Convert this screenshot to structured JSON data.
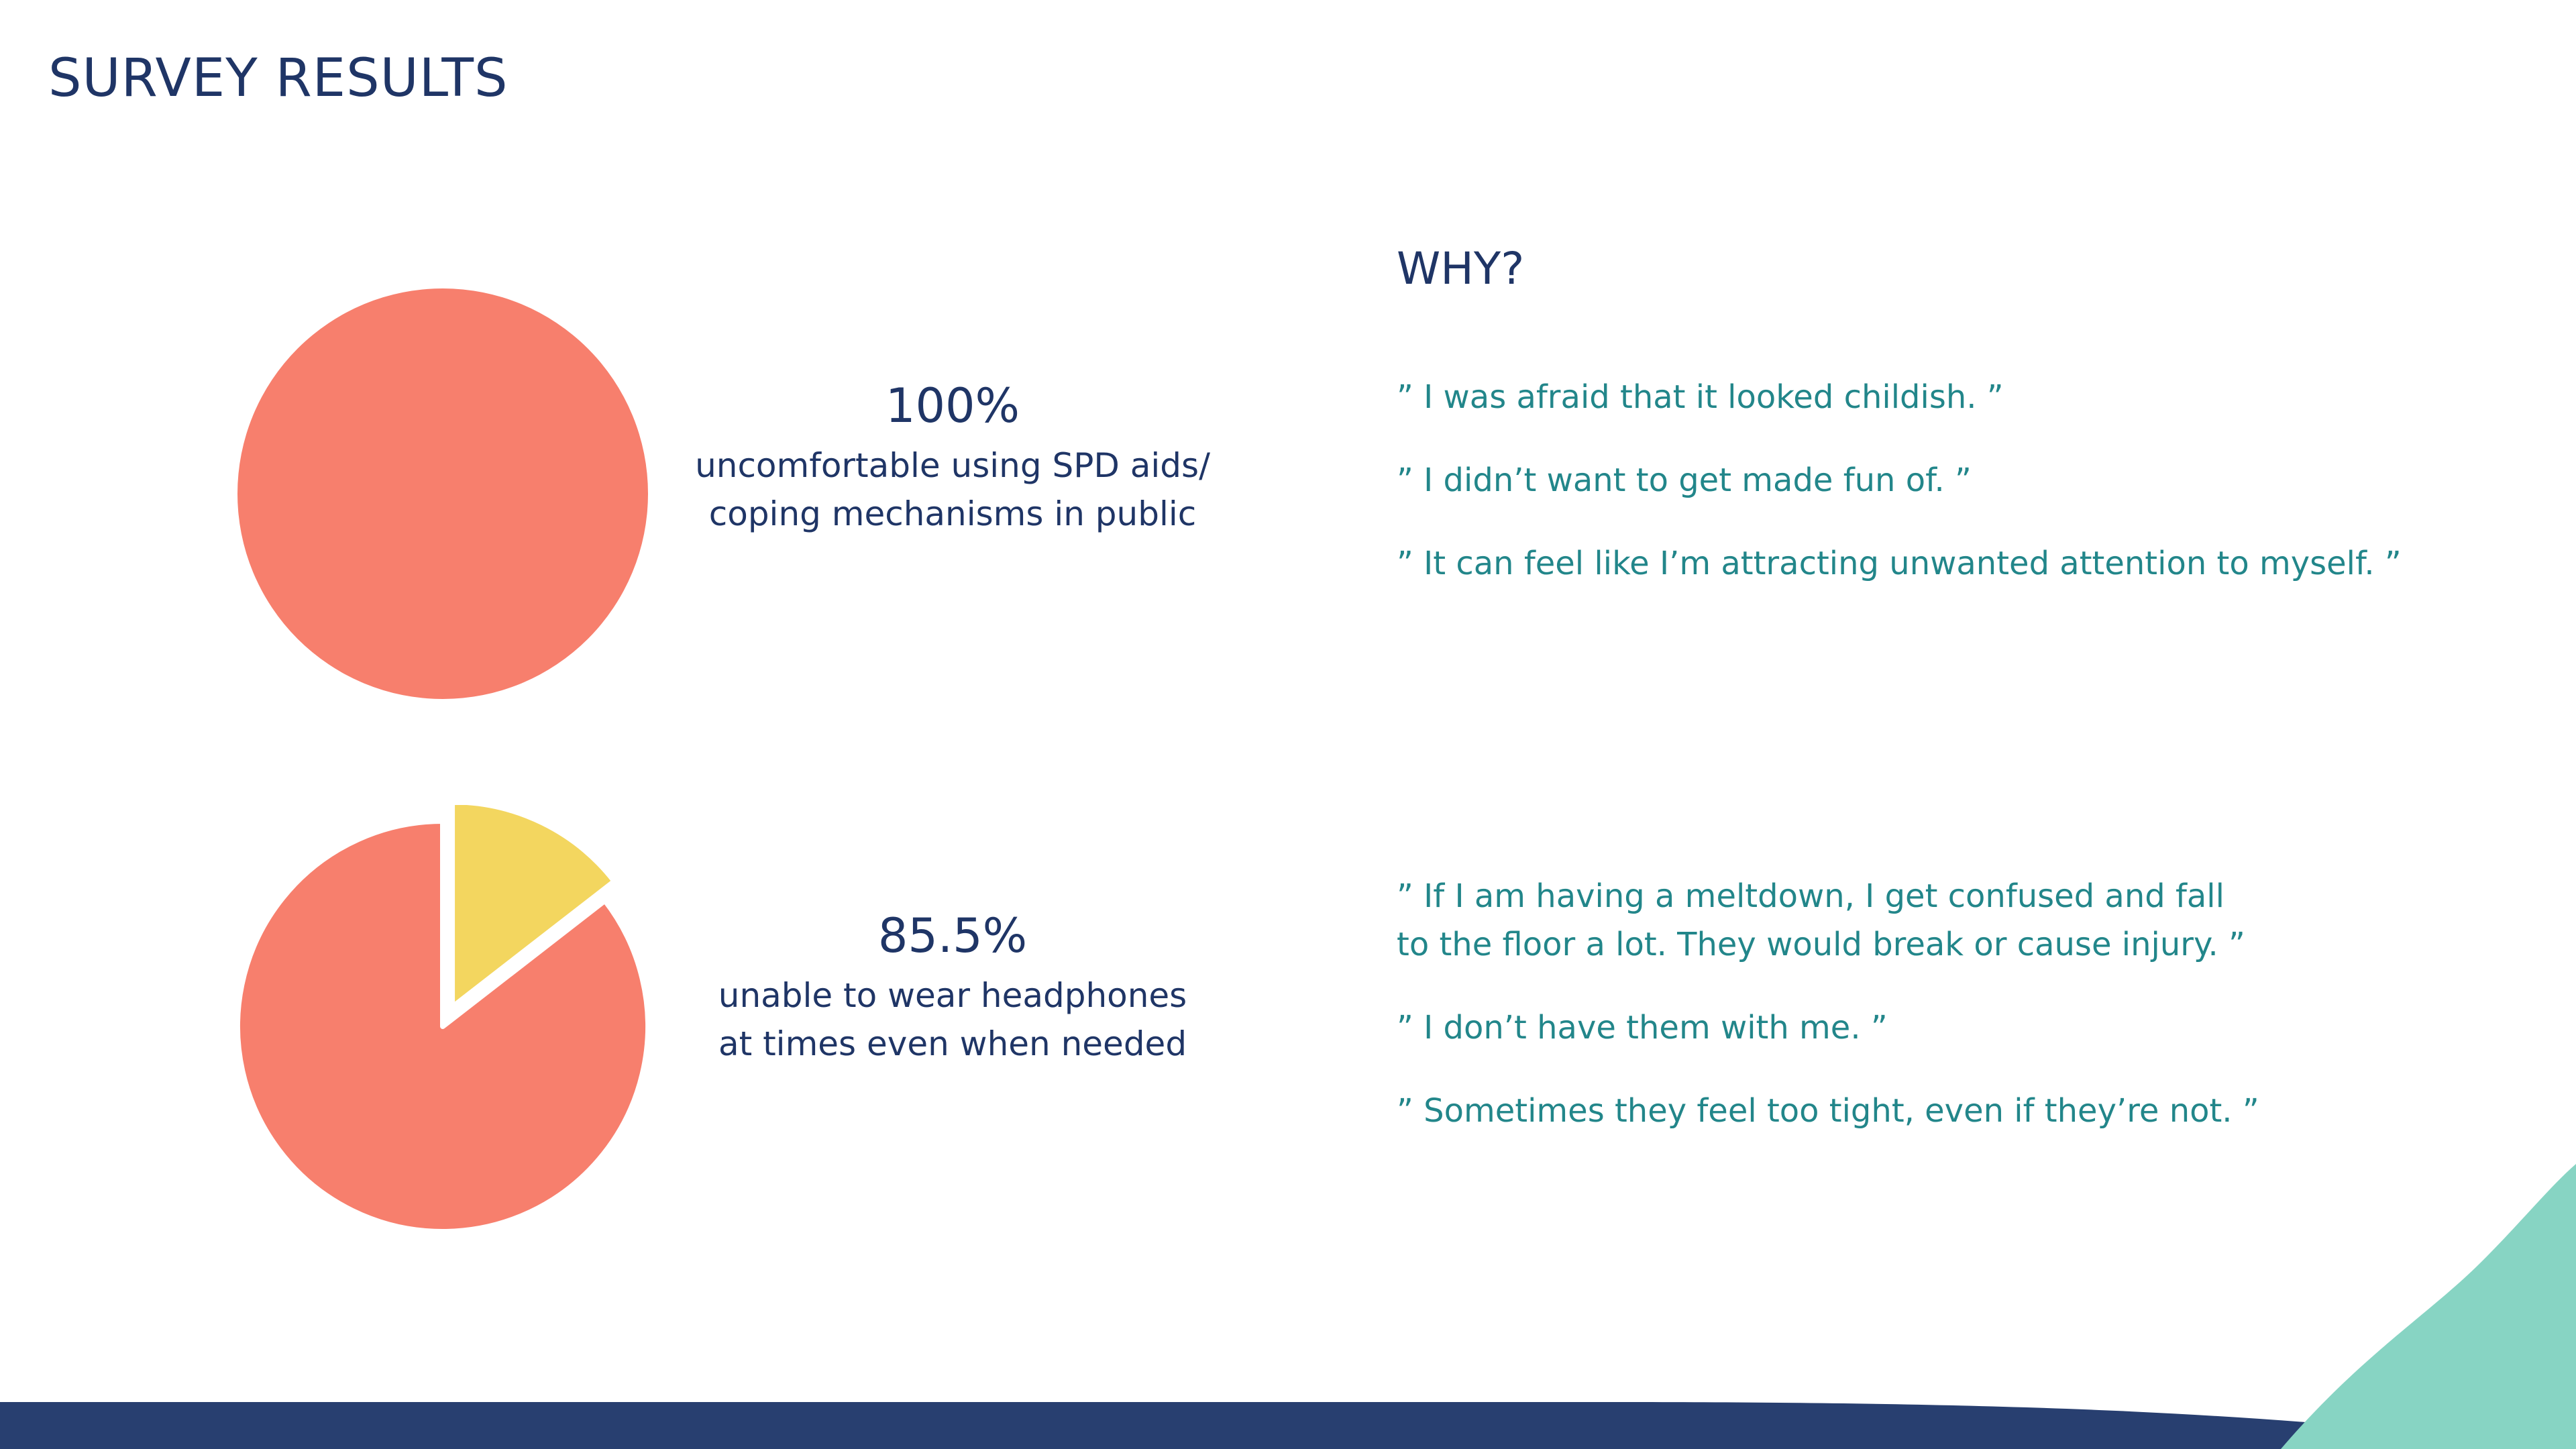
{
  "title": "SURVEY RESULTS",
  "why_heading": "WHY?",
  "colors": {
    "primary": "#f77f6d",
    "secondary": "#f3d65f",
    "navy": "#283f70",
    "teal": "#87d4c3",
    "quote_text": "#22868a"
  },
  "chart_data": [
    {
      "type": "pie",
      "slices": [
        {
          "label": "uncomfortable",
          "value": 100
        }
      ]
    },
    {
      "type": "pie",
      "slices": [
        {
          "label": "unable",
          "value": 85.5
        },
        {
          "label": "other",
          "value": 14.5,
          "exploded": true
        }
      ]
    }
  ],
  "stats": [
    {
      "value": "100%",
      "caption_line1": "uncomfortable using SPD aids/",
      "caption_line2": "coping mechanisms in public"
    },
    {
      "value": "85.5%",
      "caption_line1": "unable to wear headphones",
      "caption_line2": "at times even when needed"
    }
  ],
  "quotes_group1": [
    "” I was afraid that it looked childish. ”",
    "” I didn’t want to get made fun of. ”",
    "” It can feel like I’m attracting unwanted attention to myself. ”"
  ],
  "quotes_group2": [
    "” If I am having a meltdown, I get confused and fall\nto the floor a lot.  They would break or cause injury. ”",
    "” I don’t have them with me. ”",
    "” Sometimes they feel too tight, even if they’re not. ”"
  ]
}
